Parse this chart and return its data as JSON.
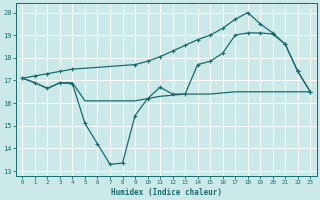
{
  "xlabel": "Humidex (Indice chaleur)",
  "xlim": [
    -0.5,
    23.5
  ],
  "ylim": [
    12.8,
    20.4
  ],
  "yticks": [
    13,
    14,
    15,
    16,
    17,
    18,
    19,
    20
  ],
  "xticks": [
    0,
    1,
    2,
    3,
    4,
    5,
    6,
    7,
    8,
    9,
    10,
    11,
    12,
    13,
    14,
    15,
    16,
    17,
    18,
    19,
    20,
    21,
    22,
    23
  ],
  "bg_color": "#cce9ea",
  "line_color": "#1a6b6b",
  "grid_color": "#ffffff",
  "line1_x": [
    0,
    1,
    2,
    3,
    4,
    5,
    6,
    7,
    8,
    9,
    10,
    11,
    12,
    13,
    14,
    15,
    16,
    17,
    18,
    19,
    20,
    21,
    22,
    23
  ],
  "line1_y": [
    17.1,
    16.9,
    16.65,
    16.9,
    16.9,
    16.1,
    16.1,
    16.1,
    16.1,
    16.1,
    16.2,
    16.3,
    16.35,
    16.4,
    16.4,
    16.4,
    16.45,
    16.5,
    16.5,
    16.5,
    16.5,
    16.5,
    16.5,
    16.5
  ],
  "line2_x": [
    0,
    1,
    2,
    3,
    4,
    5,
    6,
    7,
    8,
    9,
    10,
    11,
    12,
    13,
    14,
    15,
    16,
    17,
    18,
    19,
    20,
    21,
    22,
    23
  ],
  "line2_y": [
    17.1,
    16.9,
    16.65,
    16.9,
    16.85,
    15.1,
    14.2,
    13.3,
    13.35,
    15.45,
    16.2,
    16.7,
    16.4,
    16.4,
    17.7,
    17.85,
    18.2,
    19.0,
    19.1,
    19.1,
    19.05,
    18.6,
    17.4,
    16.5
  ],
  "line3_x": [
    0,
    1,
    2,
    3,
    4,
    9,
    10,
    11,
    12,
    13,
    14,
    15,
    16,
    17,
    18,
    19,
    20,
    21,
    22,
    23
  ],
  "line3_y": [
    17.1,
    17.2,
    17.3,
    17.4,
    17.5,
    17.7,
    17.85,
    18.05,
    18.3,
    18.55,
    18.8,
    19.0,
    19.3,
    19.7,
    20.0,
    19.5,
    19.1,
    18.6,
    17.4,
    16.5
  ]
}
